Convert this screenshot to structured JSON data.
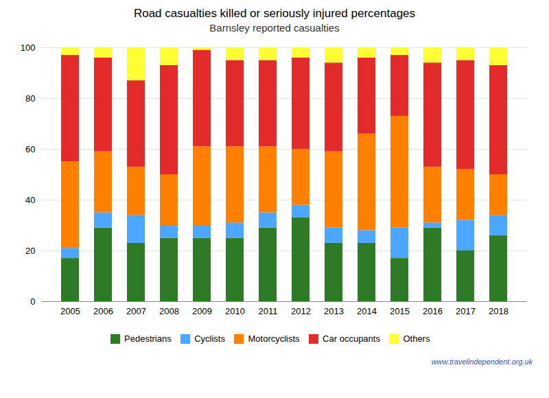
{
  "chart_data": {
    "type": "bar",
    "stacked": true,
    "title": "Road casualties killed or seriously injured percentages",
    "subtitle": "Barnsley reported casualties",
    "annotations": [
      "www.travelindependent.org.uk"
    ],
    "categories": [
      "2005",
      "2006",
      "2007",
      "2008",
      "2009",
      "2010",
      "2011",
      "2012",
      "2013",
      "2014",
      "2015",
      "2016",
      "2017",
      "2018"
    ],
    "series": [
      {
        "name": "Pedestrians",
        "color": "#2d7a27",
        "values": [
          17,
          29,
          23,
          25,
          25,
          25,
          29,
          33,
          23,
          23,
          17,
          29,
          20,
          26
        ]
      },
      {
        "name": "Cyclists",
        "color": "#4da6ff",
        "values": [
          4,
          6,
          11,
          5,
          5,
          6,
          6,
          5,
          6,
          5,
          12,
          2,
          12,
          8
        ]
      },
      {
        "name": "Motorcyclists",
        "color": "#ff7f00",
        "values": [
          34,
          24,
          19,
          20,
          31,
          30,
          26,
          22,
          30,
          38,
          44,
          22,
          20,
          16
        ]
      },
      {
        "name": "Car occupants",
        "color": "#e32b2b",
        "values": [
          42,
          37,
          34,
          43,
          38,
          34,
          34,
          36,
          35,
          30,
          24,
          41,
          43,
          43
        ]
      },
      {
        "name": "Others",
        "color": "#ffff33",
        "values": [
          3,
          4,
          13,
          7,
          1,
          5,
          5,
          4,
          6,
          4,
          3,
          6,
          5,
          7
        ]
      }
    ],
    "ylim": [
      0,
      100
    ],
    "yticks": [
      0,
      20,
      40,
      60,
      80,
      100
    ],
    "grid": true,
    "legend": "bottom"
  }
}
